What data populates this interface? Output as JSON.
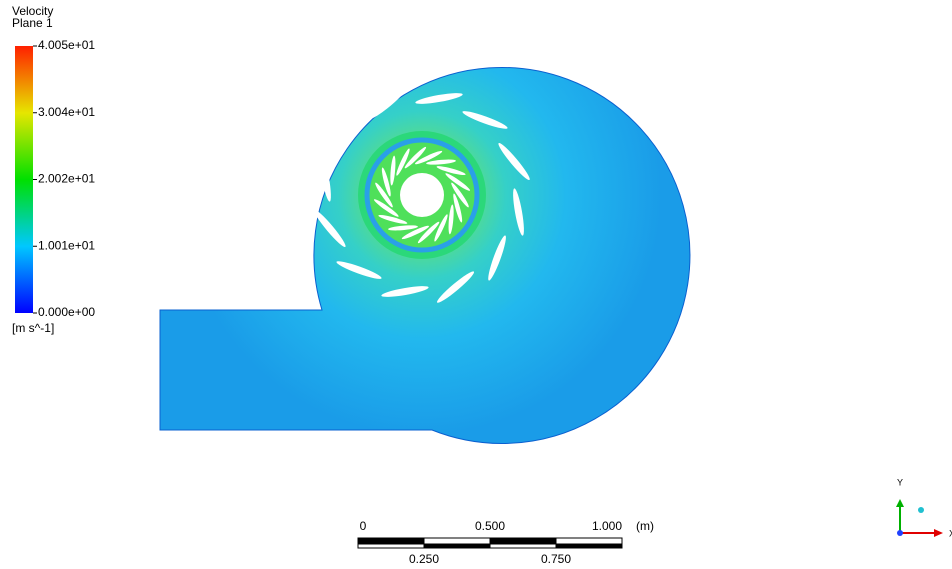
{
  "legend": {
    "title": "Velocity",
    "subtitle": "Plane 1",
    "labels": [
      "4.005e+01",
      "3.004e+01",
      "2.002e+01",
      "1.001e+01",
      "0.000e+00"
    ],
    "unit": "[m s^-1]"
  },
  "scale_bar": {
    "top_labels": [
      "0",
      "0.500",
      "1.000"
    ],
    "unit": "(m)",
    "bottom_labels": [
      "0.250",
      "0.750"
    ]
  },
  "triad": {
    "y": "Y",
    "x": "X"
  }
}
